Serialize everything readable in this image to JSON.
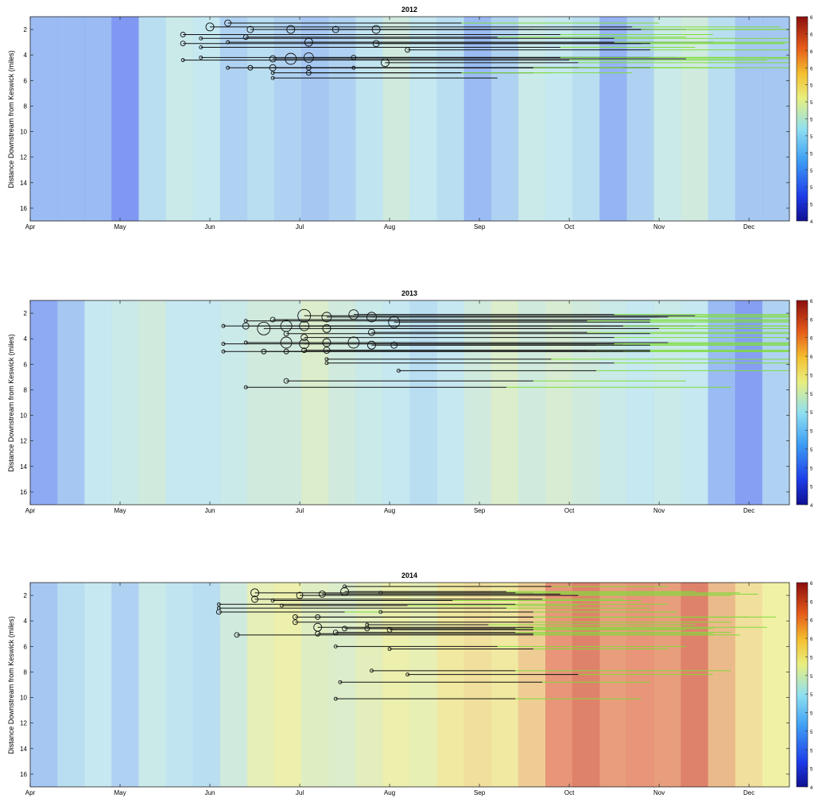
{
  "colors": {
    "cold": "#3b3ff0",
    "cool": "#8fb4f2",
    "mid": "#bfe6ef",
    "warm": "#f0ef9c",
    "hot": "#e58a6a",
    "hottest": "#b31d1d",
    "redd": "#111111",
    "emergence": "#7fdc3a",
    "circle": "#111111"
  },
  "chart_data": [
    {
      "type": "heatmap",
      "title": "2012",
      "ylabel": "Distance Downstream from Keswick (miles)",
      "xlabel": "",
      "x_tick_labels": [
        "Apr",
        "May",
        "Jun",
        "Jul",
        "Aug",
        "Sep",
        "Oct",
        "Nov",
        "Dec"
      ],
      "y_ticks": [
        2,
        4,
        6,
        8,
        10,
        12,
        14,
        16
      ],
      "ylim": [
        1,
        17
      ],
      "xlim": [
        0,
        8.45
      ],
      "colorbar_labels": [
        "4",
        "5",
        "5",
        "5",
        "5",
        "5",
        "5",
        "5",
        "5",
        "6",
        "6",
        "6",
        "6"
      ],
      "temperature_profile": [
        0.3,
        0.3,
        0.3,
        0.2,
        0.45,
        0.52,
        0.5,
        0.4,
        0.45,
        0.4,
        0.35,
        0.4,
        0.48,
        0.55,
        0.5,
        0.45,
        0.3,
        0.4,
        0.52,
        0.5,
        0.45,
        0.28,
        0.4,
        0.52,
        0.55,
        0.45,
        0.35,
        0.35
      ],
      "redds": [
        {
          "x": 2.0,
          "y": 1.8,
          "end": 6.7,
          "emerge": 8.35,
          "r": 5
        },
        {
          "x": 2.2,
          "y": 1.5,
          "end": 4.8,
          "emerge": 7.0,
          "r": 4
        },
        {
          "x": 2.45,
          "y": 2.0,
          "end": 6.9,
          "emerge": 8.3,
          "r": 4
        },
        {
          "x": 2.9,
          "y": 2.0,
          "end": 5.6,
          "emerge": 6.7,
          "r": 5
        },
        {
          "x": 3.4,
          "y": 2.0,
          "end": 7.3,
          "emerge": 8.4,
          "r": 4
        },
        {
          "x": 3.85,
          "y": 2.0,
          "end": 6.8,
          "emerge": 8.45,
          "r": 5
        },
        {
          "x": 1.7,
          "y": 2.4,
          "end": 5.9,
          "emerge": 7.6,
          "r": 3
        },
        {
          "x": 1.9,
          "y": 2.7,
          "end": 6.5,
          "emerge": 8.45,
          "r": 2
        },
        {
          "x": 2.4,
          "y": 2.6,
          "end": 5.2,
          "emerge": 7.3,
          "r": 3
        },
        {
          "x": 1.7,
          "y": 3.1,
          "end": 6.8,
          "emerge": 8.4,
          "r": 3
        },
        {
          "x": 2.2,
          "y": 3.0,
          "end": 7.6,
          "emerge": 8.45,
          "r": 2
        },
        {
          "x": 3.1,
          "y": 3.0,
          "end": 6.5,
          "emerge": 8.45,
          "r": 5
        },
        {
          "x": 3.85,
          "y": 3.1,
          "end": 6.9,
          "emerge": 8.4,
          "r": 4
        },
        {
          "x": 1.9,
          "y": 3.4,
          "end": 5.9,
          "emerge": 7.4,
          "r": 2
        },
        {
          "x": 4.2,
          "y": 3.6,
          "end": 6.9,
          "emerge": 8.45,
          "r": 3
        },
        {
          "x": 1.7,
          "y": 4.4,
          "end": 6.0,
          "emerge": 8.2,
          "r": 2
        },
        {
          "x": 1.9,
          "y": 4.2,
          "end": 7.2,
          "emerge": 8.45,
          "r": 2
        },
        {
          "x": 2.7,
          "y": 4.3,
          "end": 6.2,
          "emerge": 8.45,
          "r": 4
        },
        {
          "x": 2.9,
          "y": 4.3,
          "end": 7.3,
          "emerge": 8.4,
          "r": 7
        },
        {
          "x": 3.1,
          "y": 4.2,
          "end": 6.9,
          "emerge": 8.45,
          "r": 6
        },
        {
          "x": 3.6,
          "y": 4.2,
          "end": 5.9,
          "emerge": 7.9,
          "r": 3
        },
        {
          "x": 3.95,
          "y": 4.6,
          "end": 6.1,
          "emerge": 8.45,
          "r": 5
        },
        {
          "x": 2.2,
          "y": 5.0,
          "end": 6.3,
          "emerge": 7.4,
          "r": 2
        },
        {
          "x": 2.45,
          "y": 5.0,
          "end": 6.9,
          "emerge": 7.6,
          "r": 3
        },
        {
          "x": 2.7,
          "y": 5.0,
          "end": 6.9,
          "emerge": 8.45,
          "r": 4
        },
        {
          "x": 3.1,
          "y": 5.0,
          "end": 6.1,
          "emerge": 7.9,
          "r": 3
        },
        {
          "x": 3.6,
          "y": 5.0,
          "end": 5.6,
          "emerge": 6.6,
          "r": 2
        },
        {
          "x": 2.7,
          "y": 5.4,
          "end": 5.6,
          "emerge": 6.7,
          "r": 2
        },
        {
          "x": 3.1,
          "y": 5.4,
          "end": 4.8,
          "emerge": 5.8,
          "r": 3
        },
        {
          "x": 2.7,
          "y": 5.8,
          "end": 5.2,
          "emerge": 5.2,
          "r": 2
        }
      ]
    },
    {
      "type": "heatmap",
      "title": "2013",
      "ylabel": "Distance Downstream from Keswick (miles)",
      "xlabel": "",
      "x_tick_labels": [
        "Apr",
        "May",
        "Jun",
        "Jul",
        "Aug",
        "Sep",
        "Oct",
        "Nov",
        "Dec"
      ],
      "y_ticks": [
        2,
        4,
        6,
        8,
        10,
        12,
        14,
        16
      ],
      "ylim": [
        1,
        17
      ],
      "xlim": [
        0,
        8.45
      ],
      "colorbar_labels": [
        "4",
        "5",
        "5",
        "5",
        "5",
        "5",
        "5",
        "5",
        "6",
        "6",
        "6",
        "6"
      ],
      "temperature_profile": [
        0.25,
        0.35,
        0.5,
        0.52,
        0.55,
        0.5,
        0.5,
        0.52,
        0.55,
        0.55,
        0.6,
        0.55,
        0.52,
        0.5,
        0.45,
        0.5,
        0.55,
        0.6,
        0.55,
        0.58,
        0.55,
        0.52,
        0.5,
        0.52,
        0.5,
        0.3,
        0.22,
        0.4
      ],
      "redds": [
        {
          "x": 2.4,
          "y": 2.6,
          "end": 6.2,
          "emerge": 8.45,
          "r": 2
        },
        {
          "x": 2.7,
          "y": 2.5,
          "end": 6.9,
          "emerge": 8.45,
          "r": 3
        },
        {
          "x": 3.05,
          "y": 2.2,
          "end": 7.4,
          "emerge": 8.45,
          "r": 8
        },
        {
          "x": 3.3,
          "y": 2.3,
          "end": 7.0,
          "emerge": 8.45,
          "r": 6
        },
        {
          "x": 3.6,
          "y": 2.1,
          "end": 6.5,
          "emerge": 8.45,
          "r": 6
        },
        {
          "x": 3.8,
          "y": 2.3,
          "end": 7.1,
          "emerge": 8.45,
          "r": 6
        },
        {
          "x": 4.05,
          "y": 2.7,
          "end": 6.9,
          "emerge": 8.45,
          "r": 7
        },
        {
          "x": 2.15,
          "y": 3.0,
          "end": 6.4,
          "emerge": 8.45,
          "r": 2
        },
        {
          "x": 2.4,
          "y": 3.0,
          "end": 7.0,
          "emerge": 8.45,
          "r": 4
        },
        {
          "x": 2.6,
          "y": 3.2,
          "end": 5.8,
          "emerge": 8.45,
          "r": 8
        },
        {
          "x": 2.85,
          "y": 3.0,
          "end": 7.4,
          "emerge": 8.45,
          "r": 7
        },
        {
          "x": 3.05,
          "y": 3.0,
          "end": 6.6,
          "emerge": 8.45,
          "r": 6
        },
        {
          "x": 3.3,
          "y": 3.2,
          "end": 7.0,
          "emerge": 8.45,
          "r": 5
        },
        {
          "x": 3.8,
          "y": 3.5,
          "end": 6.2,
          "emerge": 8.45,
          "r": 4
        },
        {
          "x": 2.85,
          "y": 3.6,
          "end": 6.9,
          "emerge": 8.45,
          "r": 3
        },
        {
          "x": 3.05,
          "y": 3.9,
          "end": 6.5,
          "emerge": 8.45,
          "r": 4
        },
        {
          "x": 2.15,
          "y": 4.4,
          "end": 6.6,
          "emerge": 8.45,
          "r": 2
        },
        {
          "x": 2.4,
          "y": 4.3,
          "end": 7.0,
          "emerge": 8.45,
          "r": 2
        },
        {
          "x": 2.85,
          "y": 4.3,
          "end": 6.9,
          "emerge": 8.45,
          "r": 7
        },
        {
          "x": 3.05,
          "y": 4.4,
          "end": 6.5,
          "emerge": 8.45,
          "r": 6
        },
        {
          "x": 3.3,
          "y": 4.3,
          "end": 6.2,
          "emerge": 8.45,
          "r": 5
        },
        {
          "x": 3.6,
          "y": 4.3,
          "end": 7.1,
          "emerge": 8.45,
          "r": 7
        },
        {
          "x": 3.8,
          "y": 4.5,
          "end": 6.3,
          "emerge": 8.45,
          "r": 5
        },
        {
          "x": 4.05,
          "y": 4.5,
          "end": 6.9,
          "emerge": 8.45,
          "r": 4
        },
        {
          "x": 2.15,
          "y": 5.0,
          "end": 6.3,
          "emerge": 8.45,
          "r": 2
        },
        {
          "x": 2.6,
          "y": 5.0,
          "end": 6.6,
          "emerge": 8.45,
          "r": 3
        },
        {
          "x": 2.85,
          "y": 5.0,
          "end": 6.9,
          "emerge": 8.45,
          "r": 3
        },
        {
          "x": 3.05,
          "y": 4.9,
          "end": 6.2,
          "emerge": 8.45,
          "r": 3
        },
        {
          "x": 3.3,
          "y": 4.9,
          "end": 6.9,
          "emerge": 8.45,
          "r": 4
        },
        {
          "x": 3.3,
          "y": 5.6,
          "end": 5.8,
          "emerge": 8.45,
          "r": 2
        },
        {
          "x": 3.3,
          "y": 5.9,
          "end": 6.5,
          "emerge": 8.45,
          "r": 2
        },
        {
          "x": 4.1,
          "y": 6.5,
          "end": 6.3,
          "emerge": 8.45,
          "r": 2
        },
        {
          "x": 2.85,
          "y": 7.3,
          "end": 5.6,
          "emerge": 7.3,
          "r": 3
        },
        {
          "x": 2.4,
          "y": 7.8,
          "end": 5.3,
          "emerge": 7.8,
          "r": 2
        }
      ]
    },
    {
      "type": "heatmap",
      "title": "2014",
      "ylabel": "Distance Downstream from Keswick (miles)",
      "xlabel": "",
      "x_tick_labels": [
        "Apr",
        "May",
        "Jun",
        "Jul",
        "Aug",
        "Sep",
        "Oct",
        "Nov",
        "Dec"
      ],
      "y_ticks": [
        2,
        4,
        6,
        8,
        10,
        12,
        14,
        16
      ],
      "ylim": [
        1,
        17
      ],
      "xlim": [
        0,
        8.45
      ],
      "colorbar_labels": [
        "4",
        "5",
        "5",
        "5",
        "5",
        "5",
        "5",
        "5",
        "6",
        "6",
        "6",
        "6"
      ],
      "temperature_profile": [
        0.35,
        0.45,
        0.5,
        0.4,
        0.52,
        0.48,
        0.45,
        0.55,
        0.65,
        0.68,
        0.62,
        0.6,
        0.64,
        0.68,
        0.66,
        0.72,
        0.74,
        0.72,
        0.78,
        0.9,
        0.92,
        0.88,
        0.9,
        0.88,
        0.92,
        0.82,
        0.74,
        0.7
      ],
      "redds": [
        {
          "x": 2.5,
          "y": 1.8,
          "end": 5.6,
          "emerge": 7.3,
          "r": 5
        },
        {
          "x": 3.0,
          "y": 2.0,
          "end": 6.1,
          "emerge": 7.8,
          "r": 4
        },
        {
          "x": 3.25,
          "y": 1.9,
          "end": 5.9,
          "emerge": 8.1,
          "r": 4
        },
        {
          "x": 3.5,
          "y": 1.7,
          "end": 5.3,
          "emerge": 7.4,
          "r": 5
        },
        {
          "x": 3.5,
          "y": 1.3,
          "end": 5.8,
          "emerge": 7.1,
          "r": 2
        },
        {
          "x": 3.9,
          "y": 1.8,
          "end": 5.4,
          "emerge": 7.9,
          "r": 2
        },
        {
          "x": 2.5,
          "y": 2.3,
          "end": 5.7,
          "emerge": 6.6,
          "r": 4
        },
        {
          "x": 2.7,
          "y": 2.4,
          "end": 4.7,
          "emerge": 6.8,
          "r": 2
        },
        {
          "x": 2.1,
          "y": 2.7,
          "end": 5.4,
          "emerge": 7.1,
          "r": 2
        },
        {
          "x": 2.1,
          "y": 3.0,
          "end": 5.3,
          "emerge": 6.9,
          "r": 2
        },
        {
          "x": 2.1,
          "y": 3.3,
          "end": 3.5,
          "emerge": 5.1,
          "r": 3
        },
        {
          "x": 2.8,
          "y": 2.8,
          "end": 4.2,
          "emerge": 6.1,
          "r": 2
        },
        {
          "x": 3.9,
          "y": 3.3,
          "end": 5.6,
          "emerge": 7.2,
          "r": 2
        },
        {
          "x": 2.95,
          "y": 3.7,
          "end": 5.6,
          "emerge": 8.0,
          "r": 3
        },
        {
          "x": 3.2,
          "y": 3.7,
          "end": 5.6,
          "emerge": 8.3,
          "r": 3
        },
        {
          "x": 2.95,
          "y": 4.1,
          "end": 5.6,
          "emerge": 7.8,
          "r": 3
        },
        {
          "x": 3.75,
          "y": 4.3,
          "end": 5.1,
          "emerge": 7.4,
          "r": 2
        },
        {
          "x": 3.2,
          "y": 4.5,
          "end": 5.6,
          "emerge": 8.2,
          "r": 5
        },
        {
          "x": 3.5,
          "y": 4.6,
          "end": 5.6,
          "emerge": 7.6,
          "r": 3
        },
        {
          "x": 3.75,
          "y": 4.6,
          "end": 5.4,
          "emerge": 7.1,
          "r": 3
        },
        {
          "x": 4.0,
          "y": 4.7,
          "end": 5.6,
          "emerge": 7.3,
          "r": 3
        },
        {
          "x": 3.4,
          "y": 4.9,
          "end": 5.4,
          "emerge": 7.8,
          "r": 3
        },
        {
          "x": 3.2,
          "y": 5.0,
          "end": 5.6,
          "emerge": 7.6,
          "r": 3
        },
        {
          "x": 2.3,
          "y": 5.1,
          "end": 5.6,
          "emerge": 7.9,
          "r": 3
        },
        {
          "x": 3.4,
          "y": 6.0,
          "end": 5.2,
          "emerge": 7.3,
          "r": 2
        },
        {
          "x": 4.0,
          "y": 6.2,
          "end": 5.6,
          "emerge": 7.1,
          "r": 2
        },
        {
          "x": 3.8,
          "y": 7.9,
          "end": 5.4,
          "emerge": 7.8,
          "r": 2
        },
        {
          "x": 4.2,
          "y": 8.2,
          "end": 6.1,
          "emerge": 7.6,
          "r": 2
        },
        {
          "x": 3.45,
          "y": 8.8,
          "end": 5.7,
          "emerge": 6.9,
          "r": 2
        },
        {
          "x": 3.4,
          "y": 10.1,
          "end": 5.4,
          "emerge": 6.8,
          "r": 2
        }
      ]
    }
  ]
}
